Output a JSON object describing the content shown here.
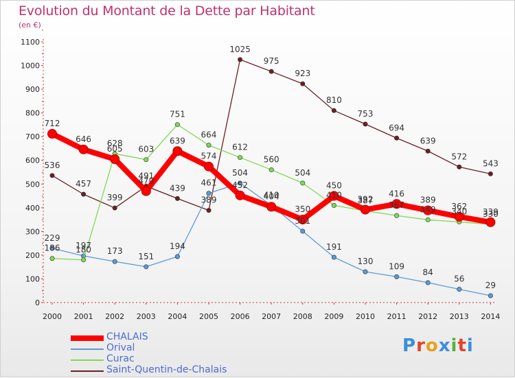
{
  "header": {
    "title": "Evolution du Montant de la Dette par Habitant",
    "unit": "(en €)"
  },
  "logo": {
    "text": "Proxiti",
    "colors": [
      "#3a8fd8",
      "#e0452b",
      "#e8a020",
      "#3a8fd8",
      "#57b33b",
      "#e0452b",
      "#3a8fd8"
    ]
  },
  "chart_data": {
    "type": "line",
    "title": "Evolution du Montant de la Dette par Habitant",
    "ylabel": "(en €)",
    "xlabel": "",
    "ylim": [
      0,
      1100
    ],
    "yticks": [
      0,
      100,
      200,
      300,
      400,
      500,
      600,
      700,
      800,
      900,
      1000,
      1100
    ],
    "grid": false,
    "legend_position": "bottom-left",
    "x": [
      "2000",
      "2001",
      "2002",
      "2003",
      "2004",
      "2005",
      "2006",
      "2007",
      "2008",
      "2009",
      "2010",
      "2011",
      "2012",
      "2013",
      "2014"
    ],
    "series": [
      {
        "name": "CHALAIS",
        "color": "#ff0000",
        "values": [
          712,
          646,
          605,
          470,
          639,
          574,
          452,
          404,
          350,
          450,
          392,
          416,
          389,
          362,
          339
        ],
        "labels": [
          "712",
          "646",
          "605",
          "470",
          "639",
          "574",
          "452",
          "404",
          "350",
          "450",
          "392",
          "416",
          "389",
          "362",
          "339"
        ]
      },
      {
        "name": "Orival",
        "color": "#5b9bd5",
        "values": [
          229,
          197,
          173,
          151,
          194,
          461,
          504,
          410,
          301,
          191,
          130,
          109,
          84,
          56,
          29
        ],
        "labels": [
          "229",
          "197",
          "173",
          "151",
          "194",
          "461",
          "504",
          "410",
          "301",
          "191",
          "130",
          "109",
          "84",
          "56",
          "29"
        ]
      },
      {
        "name": "Curac",
        "color": "#7ed957",
        "values": [
          186,
          180,
          628,
          603,
          751,
          664,
          612,
          560,
          504,
          410,
          387,
          367,
          349,
          340,
          330
        ],
        "labels": [
          "186",
          "180",
          "628",
          "603",
          "751",
          "664",
          "612",
          "560",
          "504",
          "410",
          "387",
          "367",
          "349",
          "340",
          "330"
        ]
      },
      {
        "name": "Saint-Quentin-de-Chalais",
        "color": "#6b1f24",
        "values": [
          536,
          457,
          399,
          491,
          439,
          389,
          1025,
          975,
          923,
          810,
          753,
          694,
          639,
          572,
          543
        ],
        "labels": [
          "536",
          "457",
          "399",
          "491",
          "439",
          "389",
          "1025",
          "975",
          "923",
          "810",
          "753",
          "694",
          "639",
          "572",
          "543"
        ]
      }
    ]
  }
}
